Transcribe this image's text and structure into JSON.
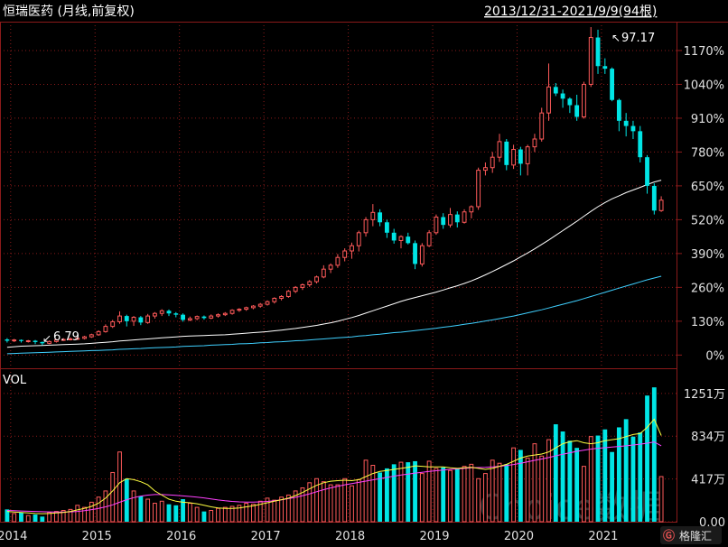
{
  "header": {
    "title": "恒瑞医药 (月线,前复权)",
    "range": "2013/12/31-2021/9/9(94根)"
  },
  "colors": {
    "up": "#ff5a5a",
    "down": "#00e5e5",
    "ma_short": "#ffffff",
    "ma_long": "#3fd0ff",
    "vol_ma_short": "#ffff40",
    "vol_ma_long": "#ff40ff",
    "grid": "#8b1a1a",
    "axis_text": "#e0e0e0"
  },
  "annotations": {
    "high_label": "97.17",
    "low_label": "6.79"
  },
  "volume": {
    "label": "VOL"
  },
  "watermark": "Choice数据",
  "logo": "格隆汇",
  "chart_data": [
    {
      "type": "candlestick",
      "title": "恒瑞医药 (月线,前复权)",
      "ylabel": "",
      "y_ticks": [
        "1170%",
        "1040%",
        "910%",
        "780%",
        "650%",
        "520%",
        "390%",
        "260%",
        "130%",
        "0%"
      ],
      "y_tick_values": [
        1170,
        1040,
        910,
        780,
        650,
        520,
        390,
        260,
        130,
        0
      ],
      "x_ticks": [
        "2014",
        "2015",
        "2016",
        "2017",
        "2018",
        "2019",
        "2020",
        "2021"
      ],
      "ylim": [
        -30,
        1260
      ],
      "grid": true,
      "series_note": "values are cumulative % change relative to base",
      "candles": [
        {
          "o": 60,
          "c": 55,
          "h": 65,
          "l": 48
        },
        {
          "o": 55,
          "c": 58,
          "h": 62,
          "l": 50
        },
        {
          "o": 58,
          "c": 54,
          "h": 60,
          "l": 48
        },
        {
          "o": 54,
          "c": 55,
          "h": 58,
          "l": 48
        },
        {
          "o": 55,
          "c": 50,
          "h": 58,
          "l": 42
        },
        {
          "o": 50,
          "c": 45,
          "h": 52,
          "l": 38
        },
        {
          "o": 45,
          "c": 52,
          "h": 56,
          "l": 42
        },
        {
          "o": 52,
          "c": 58,
          "h": 62,
          "l": 48
        },
        {
          "o": 58,
          "c": 60,
          "h": 65,
          "l": 54
        },
        {
          "o": 60,
          "c": 62,
          "h": 68,
          "l": 56
        },
        {
          "o": 62,
          "c": 64,
          "h": 70,
          "l": 58
        },
        {
          "o": 64,
          "c": 70,
          "h": 74,
          "l": 60
        },
        {
          "o": 70,
          "c": 78,
          "h": 82,
          "l": 66
        },
        {
          "o": 78,
          "c": 90,
          "h": 95,
          "l": 74
        },
        {
          "o": 90,
          "c": 110,
          "h": 118,
          "l": 86
        },
        {
          "o": 110,
          "c": 128,
          "h": 135,
          "l": 104
        },
        {
          "o": 128,
          "c": 150,
          "h": 168,
          "l": 120
        },
        {
          "o": 150,
          "c": 130,
          "h": 155,
          "l": 110
        },
        {
          "o": 130,
          "c": 145,
          "h": 150,
          "l": 112
        },
        {
          "o": 145,
          "c": 125,
          "h": 150,
          "l": 115
        },
        {
          "o": 125,
          "c": 150,
          "h": 158,
          "l": 120
        },
        {
          "o": 150,
          "c": 160,
          "h": 165,
          "l": 140
        },
        {
          "o": 160,
          "c": 170,
          "h": 176,
          "l": 150
        },
        {
          "o": 170,
          "c": 160,
          "h": 175,
          "l": 150
        },
        {
          "o": 160,
          "c": 155,
          "h": 165,
          "l": 145
        },
        {
          "o": 155,
          "c": 135,
          "h": 160,
          "l": 128
        },
        {
          "o": 135,
          "c": 140,
          "h": 148,
          "l": 130
        },
        {
          "o": 140,
          "c": 148,
          "h": 152,
          "l": 134
        },
        {
          "o": 148,
          "c": 142,
          "h": 152,
          "l": 136
        },
        {
          "o": 142,
          "c": 150,
          "h": 156,
          "l": 138
        },
        {
          "o": 150,
          "c": 155,
          "h": 160,
          "l": 144
        },
        {
          "o": 155,
          "c": 160,
          "h": 165,
          "l": 150
        },
        {
          "o": 160,
          "c": 172,
          "h": 176,
          "l": 155
        },
        {
          "o": 172,
          "c": 176,
          "h": 180,
          "l": 166
        },
        {
          "o": 176,
          "c": 182,
          "h": 186,
          "l": 170
        },
        {
          "o": 182,
          "c": 188,
          "h": 192,
          "l": 176
        },
        {
          "o": 188,
          "c": 195,
          "h": 200,
          "l": 182
        },
        {
          "o": 195,
          "c": 205,
          "h": 210,
          "l": 190
        },
        {
          "o": 205,
          "c": 218,
          "h": 222,
          "l": 198
        },
        {
          "o": 218,
          "c": 225,
          "h": 230,
          "l": 210
        },
        {
          "o": 225,
          "c": 245,
          "h": 250,
          "l": 220
        },
        {
          "o": 245,
          "c": 260,
          "h": 265,
          "l": 238
        },
        {
          "o": 260,
          "c": 270,
          "h": 275,
          "l": 250
        },
        {
          "o": 270,
          "c": 282,
          "h": 288,
          "l": 262
        },
        {
          "o": 282,
          "c": 300,
          "h": 305,
          "l": 275
        },
        {
          "o": 300,
          "c": 330,
          "h": 345,
          "l": 295
        },
        {
          "o": 330,
          "c": 345,
          "h": 352,
          "l": 315
        },
        {
          "o": 345,
          "c": 375,
          "h": 388,
          "l": 335
        },
        {
          "o": 375,
          "c": 400,
          "h": 410,
          "l": 360
        },
        {
          "o": 400,
          "c": 420,
          "h": 432,
          "l": 370
        },
        {
          "o": 420,
          "c": 470,
          "h": 478,
          "l": 398
        },
        {
          "o": 470,
          "c": 520,
          "h": 530,
          "l": 455
        },
        {
          "o": 520,
          "c": 548,
          "h": 580,
          "l": 495
        },
        {
          "o": 548,
          "c": 510,
          "h": 560,
          "l": 495
        },
        {
          "o": 510,
          "c": 470,
          "h": 520,
          "l": 450
        },
        {
          "o": 470,
          "c": 440,
          "h": 485,
          "l": 428
        },
        {
          "o": 440,
          "c": 455,
          "h": 460,
          "l": 410
        },
        {
          "o": 455,
          "c": 430,
          "h": 470,
          "l": 425
        },
        {
          "o": 430,
          "c": 350,
          "h": 440,
          "l": 330
        },
        {
          "o": 350,
          "c": 420,
          "h": 430,
          "l": 340
        },
        {
          "o": 420,
          "c": 470,
          "h": 480,
          "l": 415
        },
        {
          "o": 470,
          "c": 530,
          "h": 540,
          "l": 462
        },
        {
          "o": 530,
          "c": 500,
          "h": 545,
          "l": 485
        },
        {
          "o": 500,
          "c": 540,
          "h": 565,
          "l": 490
        },
        {
          "o": 540,
          "c": 510,
          "h": 552,
          "l": 490
        },
        {
          "o": 510,
          "c": 550,
          "h": 560,
          "l": 505
        },
        {
          "o": 550,
          "c": 570,
          "h": 575,
          "l": 525
        },
        {
          "o": 570,
          "c": 710,
          "h": 720,
          "l": 558
        },
        {
          "o": 710,
          "c": 720,
          "h": 740,
          "l": 690
        },
        {
          "o": 720,
          "c": 760,
          "h": 780,
          "l": 700
        },
        {
          "o": 760,
          "c": 820,
          "h": 850,
          "l": 742
        },
        {
          "o": 820,
          "c": 730,
          "h": 830,
          "l": 710
        },
        {
          "o": 730,
          "c": 790,
          "h": 808,
          "l": 715
        },
        {
          "o": 790,
          "c": 735,
          "h": 800,
          "l": 690
        },
        {
          "o": 735,
          "c": 800,
          "h": 808,
          "l": 690
        },
        {
          "o": 800,
          "c": 830,
          "h": 850,
          "l": 780
        },
        {
          "o": 830,
          "c": 930,
          "h": 950,
          "l": 820
        },
        {
          "o": 930,
          "c": 1030,
          "h": 1120,
          "l": 900
        },
        {
          "o": 1030,
          "c": 1005,
          "h": 1045,
          "l": 995
        },
        {
          "o": 1005,
          "c": 985,
          "h": 1020,
          "l": 950
        },
        {
          "o": 985,
          "c": 960,
          "h": 990,
          "l": 930
        },
        {
          "o": 960,
          "c": 915,
          "h": 1000,
          "l": 900
        },
        {
          "o": 915,
          "c": 1040,
          "h": 1050,
          "l": 908
        },
        {
          "o": 1040,
          "c": 1220,
          "h": 1260,
          "l": 1030
        },
        {
          "o": 1220,
          "c": 1110,
          "h": 1250,
          "l": 1080
        },
        {
          "o": 1110,
          "c": 1100,
          "h": 1140,
          "l": 1080
        },
        {
          "o": 1100,
          "c": 980,
          "h": 1105,
          "l": 975
        },
        {
          "o": 980,
          "c": 900,
          "h": 985,
          "l": 860
        },
        {
          "o": 900,
          "c": 880,
          "h": 930,
          "l": 840
        },
        {
          "o": 880,
          "c": 860,
          "h": 900,
          "l": 830
        },
        {
          "o": 860,
          "c": 760,
          "h": 880,
          "l": 740
        },
        {
          "o": 760,
          "c": 650,
          "h": 768,
          "l": 620
        },
        {
          "o": 650,
          "c": 555,
          "h": 660,
          "l": 540
        },
        {
          "o": 555,
          "c": 595,
          "h": 610,
          "l": 550
        }
      ],
      "ma_short": [
        30,
        32,
        34,
        35,
        36,
        37,
        38,
        39,
        40,
        41,
        42,
        43,
        45,
        47,
        49,
        51,
        54,
        56,
        58,
        60,
        62,
        64,
        66,
        68,
        70,
        72,
        73,
        74,
        75,
        76,
        77,
        78,
        80,
        82,
        84,
        86,
        88,
        90,
        93,
        96,
        99,
        102,
        106,
        110,
        114,
        119,
        124,
        130,
        137,
        144,
        152,
        161,
        170,
        179,
        188,
        197,
        206,
        214,
        221,
        228,
        235,
        242,
        250,
        258,
        266,
        275,
        285,
        296,
        308,
        321,
        334,
        348,
        362,
        377,
        392,
        408,
        425,
        442,
        460,
        478,
        496,
        514,
        533,
        552,
        570,
        586,
        600,
        612,
        624,
        634,
        644,
        655,
        665,
        672
      ],
      "ma_long": [
        5,
        6,
        7,
        8,
        9,
        10,
        11,
        12,
        13,
        14,
        15,
        16,
        17,
        18,
        19,
        20,
        22,
        23,
        24,
        25,
        27,
        28,
        29,
        30,
        31,
        33,
        34,
        35,
        36,
        38,
        39,
        40,
        41,
        43,
        44,
        45,
        47,
        48,
        50,
        51,
        53,
        55,
        56,
        58,
        60,
        62,
        64,
        66,
        68,
        70,
        73,
        75,
        78,
        80,
        83,
        86,
        88,
        91,
        94,
        97,
        100,
        103,
        107,
        110,
        114,
        118,
        122,
        126,
        131,
        135,
        140,
        145,
        150,
        156,
        162,
        168,
        174,
        181,
        188,
        195,
        202,
        209,
        217,
        225,
        233,
        241,
        249,
        257,
        265,
        273,
        281,
        289,
        296,
        303
      ]
    },
    {
      "type": "bar",
      "title": "VOL",
      "y_ticks": [
        "1251万",
        "834万",
        "417万",
        "0.00"
      ],
      "y_tick_values": [
        1251,
        834,
        417,
        0
      ],
      "ylim": [
        0,
        1320
      ],
      "grid": true,
      "values": [
        120,
        80,
        90,
        60,
        70,
        50,
        90,
        100,
        110,
        120,
        160,
        140,
        190,
        240,
        300,
        480,
        680,
        420,
        300,
        250,
        220,
        180,
        200,
        170,
        160,
        220,
        180,
        140,
        100,
        110,
        130,
        140,
        150,
        160,
        180,
        170,
        200,
        230,
        210,
        240,
        260,
        300,
        330,
        380,
        420,
        390,
        360,
        360,
        420,
        350,
        410,
        600,
        550,
        480,
        520,
        560,
        580,
        580,
        590,
        470,
        590,
        520,
        530,
        500,
        520,
        540,
        560,
        420,
        470,
        600,
        570,
        560,
        720,
        700,
        620,
        760,
        640,
        800,
        950,
        880,
        790,
        720,
        540,
        830,
        840,
        900,
        680,
        920,
        1000,
        830,
        870,
        1230,
        1310,
        440
      ],
      "ma_short": [
        100,
        95,
        90,
        85,
        80,
        78,
        80,
        85,
        90,
        100,
        115,
        130,
        150,
        180,
        230,
        300,
        380,
        420,
        410,
        390,
        360,
        300,
        260,
        220,
        200,
        190,
        185,
        175,
        160,
        145,
        135,
        130,
        130,
        135,
        145,
        155,
        170,
        185,
        200,
        215,
        230,
        255,
        285,
        320,
        355,
        380,
        395,
        400,
        405,
        400,
        410,
        440,
        470,
        490,
        500,
        510,
        520,
        530,
        545,
        540,
        535,
        535,
        535,
        525,
        520,
        525,
        530,
        520,
        510,
        520,
        540,
        560,
        590,
        620,
        640,
        650,
        660,
        680,
        720,
        760,
        780,
        790,
        770,
        760,
        770,
        790,
        800,
        810,
        830,
        850,
        860,
        920,
        1000,
        840
      ],
      "ma_long": [
        110,
        108,
        105,
        102,
        100,
        98,
        96,
        95,
        95,
        96,
        100,
        108,
        118,
        130,
        145,
        165,
        190,
        215,
        235,
        250,
        260,
        265,
        265,
        262,
        258,
        252,
        246,
        240,
        232,
        222,
        212,
        204,
        198,
        194,
        192,
        192,
        194,
        198,
        205,
        214,
        225,
        238,
        254,
        272,
        292,
        312,
        330,
        345,
        360,
        372,
        384,
        396,
        408,
        420,
        432,
        444,
        455,
        465,
        474,
        482,
        490,
        497,
        504,
        510,
        515,
        520,
        525,
        528,
        530,
        534,
        540,
        548,
        558,
        570,
        584,
        598,
        612,
        626,
        642,
        658,
        672,
        686,
        698,
        708,
        716,
        722,
        728,
        734,
        740,
        748,
        756,
        766,
        778,
        740
      ]
    }
  ]
}
